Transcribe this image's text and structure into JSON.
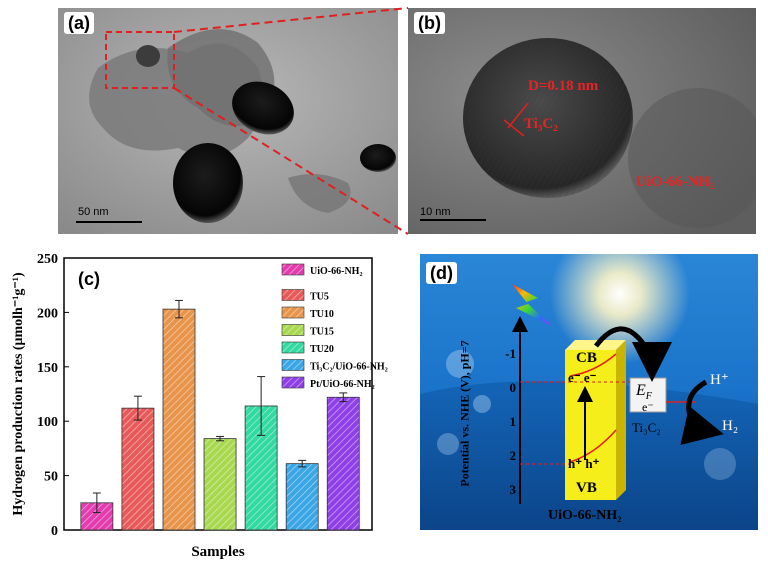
{
  "panel_a": {
    "tag": "(a)",
    "scale_label": "50 nm"
  },
  "panel_b": {
    "tag": "(b)",
    "scale_label": "10 nm",
    "lattice_label": "D=0.18 nm",
    "ti3c2_label": "Ti₃C₂",
    "uio_label": "UiO-66-NH₂"
  },
  "panel_c": {
    "tag": "(c)"
  },
  "chart_data": {
    "type": "bar",
    "categories": [
      "UiO-66-NH₂",
      "TU5",
      "TU10",
      "TU15",
      "TU20",
      "Ti₃C₂/UiO-66-NH₂",
      "Pt/UiO-66-NH₂"
    ],
    "values": [
      25,
      112,
      203,
      84,
      114,
      61,
      122
    ],
    "errors": [
      9,
      11,
      8,
      2,
      27,
      3,
      4
    ],
    "colors": [
      "#e23cae",
      "#e85a5a",
      "#e8944a",
      "#a8d84e",
      "#32d9a0",
      "#3aa6e6",
      "#8f3fe8"
    ],
    "xlabel": "Samples",
    "ylabel": "Hydrogen production rates (μmolh⁻¹g⁻¹)",
    "ylim": [
      0,
      250
    ],
    "yticks": [
      0,
      50,
      100,
      150,
      200,
      250
    ],
    "legend_position": "top-right",
    "grid": false
  },
  "panel_d": {
    "tag": "(d)",
    "axis_label": "Potential vs. NHE (V), pH=7",
    "ticks": [
      "-1",
      "0",
      "1",
      "2",
      "3"
    ],
    "cb": "CB",
    "vb": "VB",
    "electron": "e⁻",
    "hole": "h⁺",
    "ef": "E",
    "ef_sub": "F",
    "ti3c2": "Ti₃C₂",
    "uio": "UiO-66-NH₂",
    "hplus": "H⁺",
    "h2": "H₂",
    "colors": {
      "sky_top": "#1a73c9",
      "sky_bottom": "#0d3b7a",
      "cube": "#f5ee1a",
      "cube_side": "#c9b400"
    }
  }
}
